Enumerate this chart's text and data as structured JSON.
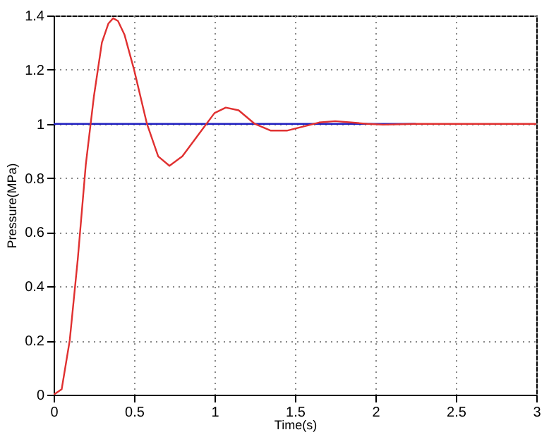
{
  "chart_data": {
    "type": "line",
    "xlabel": "Time(s)",
    "ylabel": "Pressure(MPa)",
    "xlim": [
      0,
      3
    ],
    "ylim": [
      0,
      1.4
    ],
    "xticks": [
      0,
      0.5,
      1,
      1.5,
      2,
      2.5,
      3
    ],
    "yticks": [
      0,
      0.2,
      0.4,
      0.6,
      0.8,
      1,
      1.2,
      1.4
    ],
    "grid": true,
    "marker": "none",
    "line_style": "solid",
    "series": [
      {
        "color": "#2020c0",
        "x": [
          0,
          2.25
        ],
        "values": [
          1,
          1
        ]
      },
      {
        "color": "#e03030",
        "x": [
          0,
          0.05,
          0.1,
          0.15,
          0.2,
          0.25,
          0.3,
          0.34,
          0.37,
          0.4,
          0.44,
          0.5,
          0.58,
          0.65,
          0.72,
          0.8,
          0.9,
          1.0,
          1.07,
          1.15,
          1.25,
          1.35,
          1.45,
          1.55,
          1.65,
          1.75,
          1.85,
          1.95,
          2.05,
          2.25,
          3
        ],
        "values": [
          0,
          0.02,
          0.2,
          0.5,
          0.85,
          1.1,
          1.3,
          1.37,
          1.39,
          1.38,
          1.33,
          1.2,
          1.0,
          0.88,
          0.845,
          0.88,
          0.96,
          1.04,
          1.06,
          1.05,
          1.0,
          0.975,
          0.975,
          0.99,
          1.005,
          1.01,
          1.005,
          1.0,
          0.997,
          1.0,
          1.0
        ]
      }
    ]
  }
}
